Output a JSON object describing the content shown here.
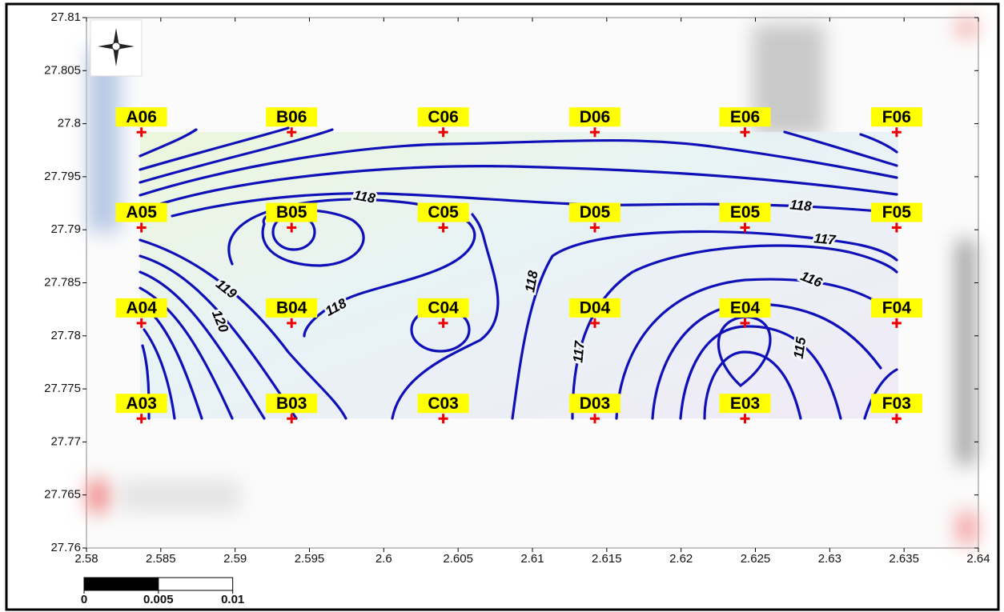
{
  "xticks": [
    2.58,
    2.585,
    2.59,
    2.595,
    2.6,
    2.605,
    2.61,
    2.615,
    2.62,
    2.625,
    2.63,
    2.635,
    2.64
  ],
  "yticks": [
    27.76,
    27.765,
    27.77,
    27.775,
    27.78,
    27.785,
    27.79,
    27.795,
    27.8,
    27.805,
    27.81
  ],
  "xlim": [
    2.58,
    2.64
  ],
  "ylim": [
    27.76,
    27.81
  ],
  "stations": [
    {
      "label": "A06",
      "lon": 2.5837,
      "lat": 27.7992
    },
    {
      "label": "B06",
      "lon": 2.5938,
      "lat": 27.7992
    },
    {
      "label": "C06",
      "lon": 2.604,
      "lat": 27.7992
    },
    {
      "label": "D06",
      "lon": 2.6142,
      "lat": 27.7992
    },
    {
      "label": "E06",
      "lon": 2.6243,
      "lat": 27.7992
    },
    {
      "label": "F06",
      "lon": 2.6345,
      "lat": 27.7992
    },
    {
      "label": "A05",
      "lon": 2.5837,
      "lat": 27.7902
    },
    {
      "label": "B05",
      "lon": 2.5938,
      "lat": 27.7902
    },
    {
      "label": "C05",
      "lon": 2.604,
      "lat": 27.7902
    },
    {
      "label": "D05",
      "lon": 2.6142,
      "lat": 27.7902
    },
    {
      "label": "E05",
      "lon": 2.6243,
      "lat": 27.7902
    },
    {
      "label": "F05",
      "lon": 2.6345,
      "lat": 27.7902
    },
    {
      "label": "A04",
      "lon": 2.5837,
      "lat": 27.7812
    },
    {
      "label": "B04",
      "lon": 2.5938,
      "lat": 27.7812
    },
    {
      "label": "C04",
      "lon": 2.604,
      "lat": 27.7812
    },
    {
      "label": "D04",
      "lon": 2.6142,
      "lat": 27.7812
    },
    {
      "label": "E04",
      "lon": 2.6243,
      "lat": 27.7812
    },
    {
      "label": "F04",
      "lon": 2.6345,
      "lat": 27.7812
    },
    {
      "label": "A03",
      "lon": 2.5837,
      "lat": 27.7722
    },
    {
      "label": "B03",
      "lon": 2.5938,
      "lat": 27.7722
    },
    {
      "label": "C03",
      "lon": 2.604,
      "lat": 27.7722
    },
    {
      "label": "D03",
      "lon": 2.6142,
      "lat": 27.7722
    },
    {
      "label": "E03",
      "lon": 2.6243,
      "lat": 27.7722
    },
    {
      "label": "F03",
      "lon": 2.6345,
      "lat": 27.7722
    }
  ],
  "contour_labels": [
    118,
    118,
    118,
    117,
    116,
    115,
    117,
    118,
    119,
    120
  ],
  "scale_bar": [
    0,
    0.005,
    0.01
  ]
}
